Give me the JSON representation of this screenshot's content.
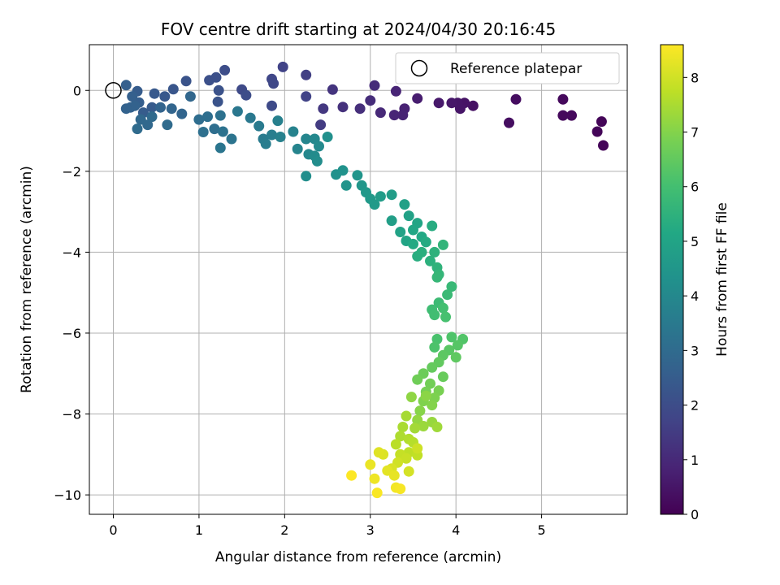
{
  "chart_data": {
    "type": "scatter",
    "title": "FOV centre drift starting at 2024/04/30 20:16:45",
    "xlabel": "Angular distance from reference (arcmin)",
    "ylabel": "Rotation from reference (arcmin)",
    "xlim": [
      -0.28,
      6.0
    ],
    "ylim": [
      -10.48,
      1.13
    ],
    "xticks": [
      0,
      1,
      2,
      3,
      4,
      5
    ],
    "yticks": [
      0,
      -2,
      -4,
      -6,
      -8,
      -10
    ],
    "yticklabels": [
      "0",
      "−2",
      "−4",
      "−6",
      "−8",
      "−10"
    ],
    "grid": true,
    "legend": {
      "placement": "top-right",
      "entries": [
        "Reference platepar"
      ]
    },
    "reference_point": {
      "x": 0,
      "y": 0
    },
    "colorbar": {
      "label": "Hours from first FF file",
      "range": [
        0,
        8.6
      ],
      "ticks": [
        0,
        1,
        2,
        3,
        4,
        5,
        6,
        7,
        8
      ],
      "colormap": "viridis"
    },
    "series": [
      {
        "color_by": "hours",
        "points": [
          [
            5.65,
            -1.02,
            0.1
          ],
          [
            5.7,
            -0.77,
            0.1
          ],
          [
            5.72,
            -1.36,
            0.1
          ],
          [
            5.25,
            -0.22,
            0.2
          ],
          [
            5.25,
            -0.62,
            0.2
          ],
          [
            5.35,
            -0.62,
            0.2
          ],
          [
            4.7,
            -0.22,
            0.3
          ],
          [
            4.62,
            -0.8,
            0.3
          ],
          [
            4.2,
            -0.38,
            0.4
          ],
          [
            4.1,
            -0.31,
            0.45
          ],
          [
            4.05,
            -0.45,
            0.5
          ],
          [
            4.02,
            -0.31,
            0.5
          ],
          [
            3.95,
            -0.31,
            0.55
          ],
          [
            3.8,
            -0.31,
            0.6
          ],
          [
            3.55,
            -0.2,
            0.7
          ],
          [
            3.4,
            -0.45,
            0.8
          ],
          [
            3.38,
            -0.61,
            0.85
          ],
          [
            3.28,
            -0.61,
            0.9
          ],
          [
            3.3,
            -0.02,
            0.9
          ],
          [
            3.12,
            -0.55,
            1.0
          ],
          [
            3.05,
            0.12,
            1.05
          ],
          [
            3.0,
            -0.25,
            1.1
          ],
          [
            2.88,
            -0.45,
            1.15
          ],
          [
            2.68,
            -0.41,
            1.2
          ],
          [
            2.56,
            0.02,
            1.3
          ],
          [
            2.45,
            -0.45,
            1.4
          ],
          [
            2.42,
            -0.85,
            1.5
          ],
          [
            2.25,
            0.38,
            1.6
          ],
          [
            2.25,
            -0.15,
            1.7
          ],
          [
            1.98,
            0.58,
            1.7
          ],
          [
            1.85,
            0.28,
            1.8
          ],
          [
            1.87,
            0.17,
            1.85
          ],
          [
            1.85,
            -0.38,
            1.9
          ],
          [
            1.5,
            0.02,
            1.9
          ],
          [
            1.55,
            -0.12,
            2.0
          ],
          [
            1.3,
            0.5,
            2.0
          ],
          [
            1.2,
            0.32,
            2.1
          ],
          [
            1.12,
            0.25,
            2.1
          ],
          [
            1.23,
            0.0,
            2.15
          ],
          [
            1.22,
            -0.28,
            2.2
          ],
          [
            0.85,
            0.23,
            2.2
          ],
          [
            0.7,
            0.03,
            2.3
          ],
          [
            0.6,
            -0.15,
            2.35
          ],
          [
            0.48,
            -0.08,
            2.4
          ],
          [
            0.45,
            -0.42,
            2.45
          ],
          [
            0.35,
            -0.55,
            2.5
          ],
          [
            0.28,
            -0.02,
            2.5
          ],
          [
            0.3,
            -0.3,
            2.55
          ],
          [
            0.22,
            -0.15,
            2.6
          ],
          [
            0.15,
            0.13,
            2.6
          ],
          [
            0.2,
            -0.42,
            2.65
          ],
          [
            0.25,
            -0.38,
            2.7
          ],
          [
            0.15,
            -0.45,
            2.7
          ],
          [
            0.55,
            -0.42,
            2.75
          ],
          [
            0.8,
            -0.58,
            2.8
          ],
          [
            0.68,
            -0.45,
            2.8
          ],
          [
            0.9,
            -0.15,
            2.85
          ],
          [
            0.32,
            -0.72,
            2.9
          ],
          [
            0.4,
            -0.85,
            2.9
          ],
          [
            0.45,
            -0.65,
            2.95
          ],
          [
            0.63,
            -0.85,
            3.0
          ],
          [
            0.28,
            -0.95,
            3.0
          ],
          [
            1.0,
            -0.72,
            3.05
          ],
          [
            1.1,
            -0.65,
            3.1
          ],
          [
            1.18,
            -0.95,
            3.1
          ],
          [
            1.05,
            -1.03,
            3.15
          ],
          [
            1.25,
            -0.62,
            3.2
          ],
          [
            1.28,
            -1.02,
            3.25
          ],
          [
            1.38,
            -1.2,
            3.3
          ],
          [
            1.25,
            -1.42,
            3.35
          ],
          [
            1.45,
            -0.52,
            3.4
          ],
          [
            1.6,
            -0.68,
            3.45
          ],
          [
            1.7,
            -0.88,
            3.5
          ],
          [
            1.75,
            -1.2,
            3.55
          ],
          [
            1.78,
            -1.32,
            3.6
          ],
          [
            1.85,
            -1.1,
            3.65
          ],
          [
            1.92,
            -0.75,
            3.7
          ],
          [
            1.95,
            -1.15,
            3.75
          ],
          [
            2.1,
            -1.02,
            3.8
          ],
          [
            2.15,
            -1.45,
            3.85
          ],
          [
            2.25,
            -1.2,
            3.9
          ],
          [
            2.28,
            -1.58,
            3.95
          ],
          [
            2.35,
            -1.2,
            4.0
          ],
          [
            2.4,
            -1.38,
            4.05
          ],
          [
            2.35,
            -1.62,
            4.1
          ],
          [
            2.38,
            -1.75,
            4.15
          ],
          [
            2.25,
            -2.12,
            4.2
          ],
          [
            2.5,
            -1.15,
            4.25
          ],
          [
            2.6,
            -2.08,
            4.3
          ],
          [
            2.68,
            -1.98,
            4.35
          ],
          [
            2.72,
            -2.35,
            4.4
          ],
          [
            2.85,
            -2.1,
            4.45
          ],
          [
            2.9,
            -2.35,
            4.5
          ],
          [
            2.95,
            -2.52,
            4.55
          ],
          [
            3.0,
            -2.68,
            4.6
          ],
          [
            3.05,
            -2.82,
            4.65
          ],
          [
            3.12,
            -2.62,
            4.7
          ],
          [
            3.25,
            -2.58,
            4.75
          ],
          [
            3.25,
            -3.22,
            4.8
          ],
          [
            3.4,
            -2.82,
            4.85
          ],
          [
            3.45,
            -3.1,
            4.9
          ],
          [
            3.35,
            -3.5,
            4.95
          ],
          [
            3.42,
            -3.72,
            5.0
          ],
          [
            3.55,
            -3.28,
            5.05
          ],
          [
            3.5,
            -3.45,
            5.1
          ],
          [
            3.6,
            -3.62,
            5.15
          ],
          [
            3.5,
            -3.8,
            5.2
          ],
          [
            3.65,
            -3.75,
            5.25
          ],
          [
            3.72,
            -3.35,
            5.3
          ],
          [
            3.55,
            -4.1,
            5.35
          ],
          [
            3.6,
            -4.0,
            5.4
          ],
          [
            3.7,
            -4.22,
            5.45
          ],
          [
            3.75,
            -4.0,
            5.5
          ],
          [
            3.78,
            -4.38,
            5.55
          ],
          [
            3.85,
            -3.82,
            5.6
          ],
          [
            3.8,
            -4.55,
            5.65
          ],
          [
            3.78,
            -4.62,
            5.7
          ],
          [
            3.95,
            -4.85,
            5.75
          ],
          [
            3.9,
            -5.05,
            5.8
          ],
          [
            3.8,
            -5.25,
            5.85
          ],
          [
            3.72,
            -5.42,
            5.9
          ],
          [
            3.75,
            -5.55,
            5.95
          ],
          [
            3.85,
            -5.38,
            6.0
          ],
          [
            3.88,
            -5.6,
            6.05
          ],
          [
            3.78,
            -6.15,
            6.1
          ],
          [
            3.75,
            -6.35,
            6.15
          ],
          [
            3.95,
            -6.1,
            6.2
          ],
          [
            4.08,
            -6.15,
            6.25
          ],
          [
            4.02,
            -6.3,
            6.3
          ],
          [
            3.92,
            -6.42,
            6.35
          ],
          [
            3.85,
            -6.55,
            6.4
          ],
          [
            4.0,
            -6.6,
            6.45
          ],
          [
            3.8,
            -6.72,
            6.5
          ],
          [
            3.72,
            -6.85,
            6.55
          ],
          [
            3.85,
            -7.08,
            6.6
          ],
          [
            3.62,
            -7.0,
            6.65
          ],
          [
            3.55,
            -7.15,
            6.7
          ],
          [
            3.7,
            -7.25,
            6.75
          ],
          [
            3.65,
            -7.45,
            6.8
          ],
          [
            3.8,
            -7.42,
            6.85
          ],
          [
            3.75,
            -7.6,
            6.9
          ],
          [
            3.62,
            -7.68,
            6.95
          ],
          [
            3.72,
            -7.78,
            7.0
          ],
          [
            3.58,
            -7.92,
            7.05
          ],
          [
            3.65,
            -7.55,
            7.1
          ],
          [
            3.48,
            -7.58,
            7.15
          ],
          [
            3.55,
            -8.15,
            7.2
          ],
          [
            3.72,
            -8.2,
            7.25
          ],
          [
            3.62,
            -8.3,
            7.3
          ],
          [
            3.78,
            -8.32,
            7.35
          ],
          [
            3.52,
            -8.35,
            7.4
          ],
          [
            3.42,
            -8.05,
            7.45
          ],
          [
            3.38,
            -8.32,
            7.5
          ],
          [
            3.35,
            -8.55,
            7.55
          ],
          [
            3.45,
            -8.62,
            7.6
          ],
          [
            3.5,
            -8.7,
            7.65
          ],
          [
            3.3,
            -8.75,
            7.7
          ],
          [
            3.45,
            -8.95,
            7.75
          ],
          [
            3.55,
            -9.02,
            7.8
          ],
          [
            3.35,
            -9.0,
            7.85
          ],
          [
            3.42,
            -9.1,
            7.9
          ],
          [
            3.55,
            -8.85,
            7.95
          ],
          [
            3.32,
            -9.2,
            8.0
          ],
          [
            3.45,
            -9.42,
            8.05
          ],
          [
            3.25,
            -9.35,
            8.1
          ],
          [
            3.15,
            -9.0,
            8.15
          ],
          [
            3.1,
            -8.95,
            8.2
          ],
          [
            3.2,
            -9.4,
            8.25
          ],
          [
            3.28,
            -9.52,
            8.3
          ],
          [
            3.0,
            -9.25,
            8.35
          ],
          [
            3.05,
            -9.6,
            8.4
          ],
          [
            3.3,
            -9.82,
            8.45
          ],
          [
            3.35,
            -9.85,
            8.5
          ],
          [
            3.08,
            -9.95,
            8.55
          ],
          [
            2.78,
            -9.52,
            8.58
          ]
        ]
      }
    ]
  }
}
